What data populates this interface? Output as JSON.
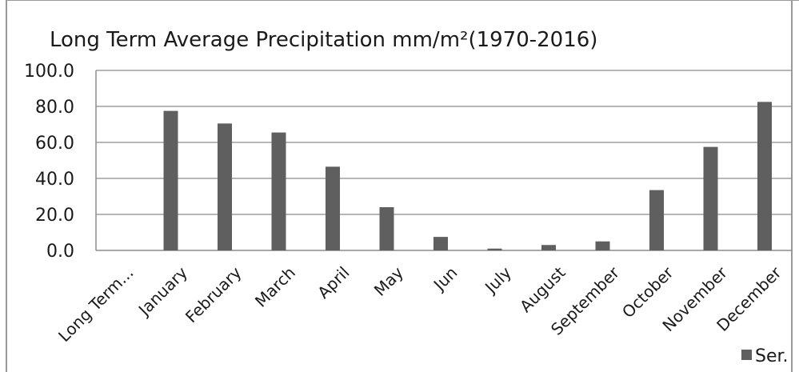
{
  "chart_data": {
    "type": "bar",
    "title": "Long Term Average Precipitation mm/m²(1970-2016)",
    "xlabel": "",
    "ylabel": "",
    "categories": [
      "Long Term...",
      "January",
      "February",
      "March",
      "April",
      "May",
      "Jun",
      "July",
      "August",
      "September",
      "October",
      "November",
      "December"
    ],
    "series": [
      {
        "name": "Ser.",
        "values": [
          0,
          77.5,
          70.5,
          65.5,
          46.5,
          24.0,
          7.5,
          1.0,
          3.0,
          5.0,
          33.5,
          57.5,
          82.5
        ]
      }
    ],
    "ylim": [
      0,
      100
    ],
    "yticks": [
      "0.0",
      "20.0",
      "40.0",
      "60.0",
      "80.0",
      "100.0"
    ],
    "grid": true,
    "legend": "bottom-right",
    "bar_color": "#5f5f5f"
  }
}
